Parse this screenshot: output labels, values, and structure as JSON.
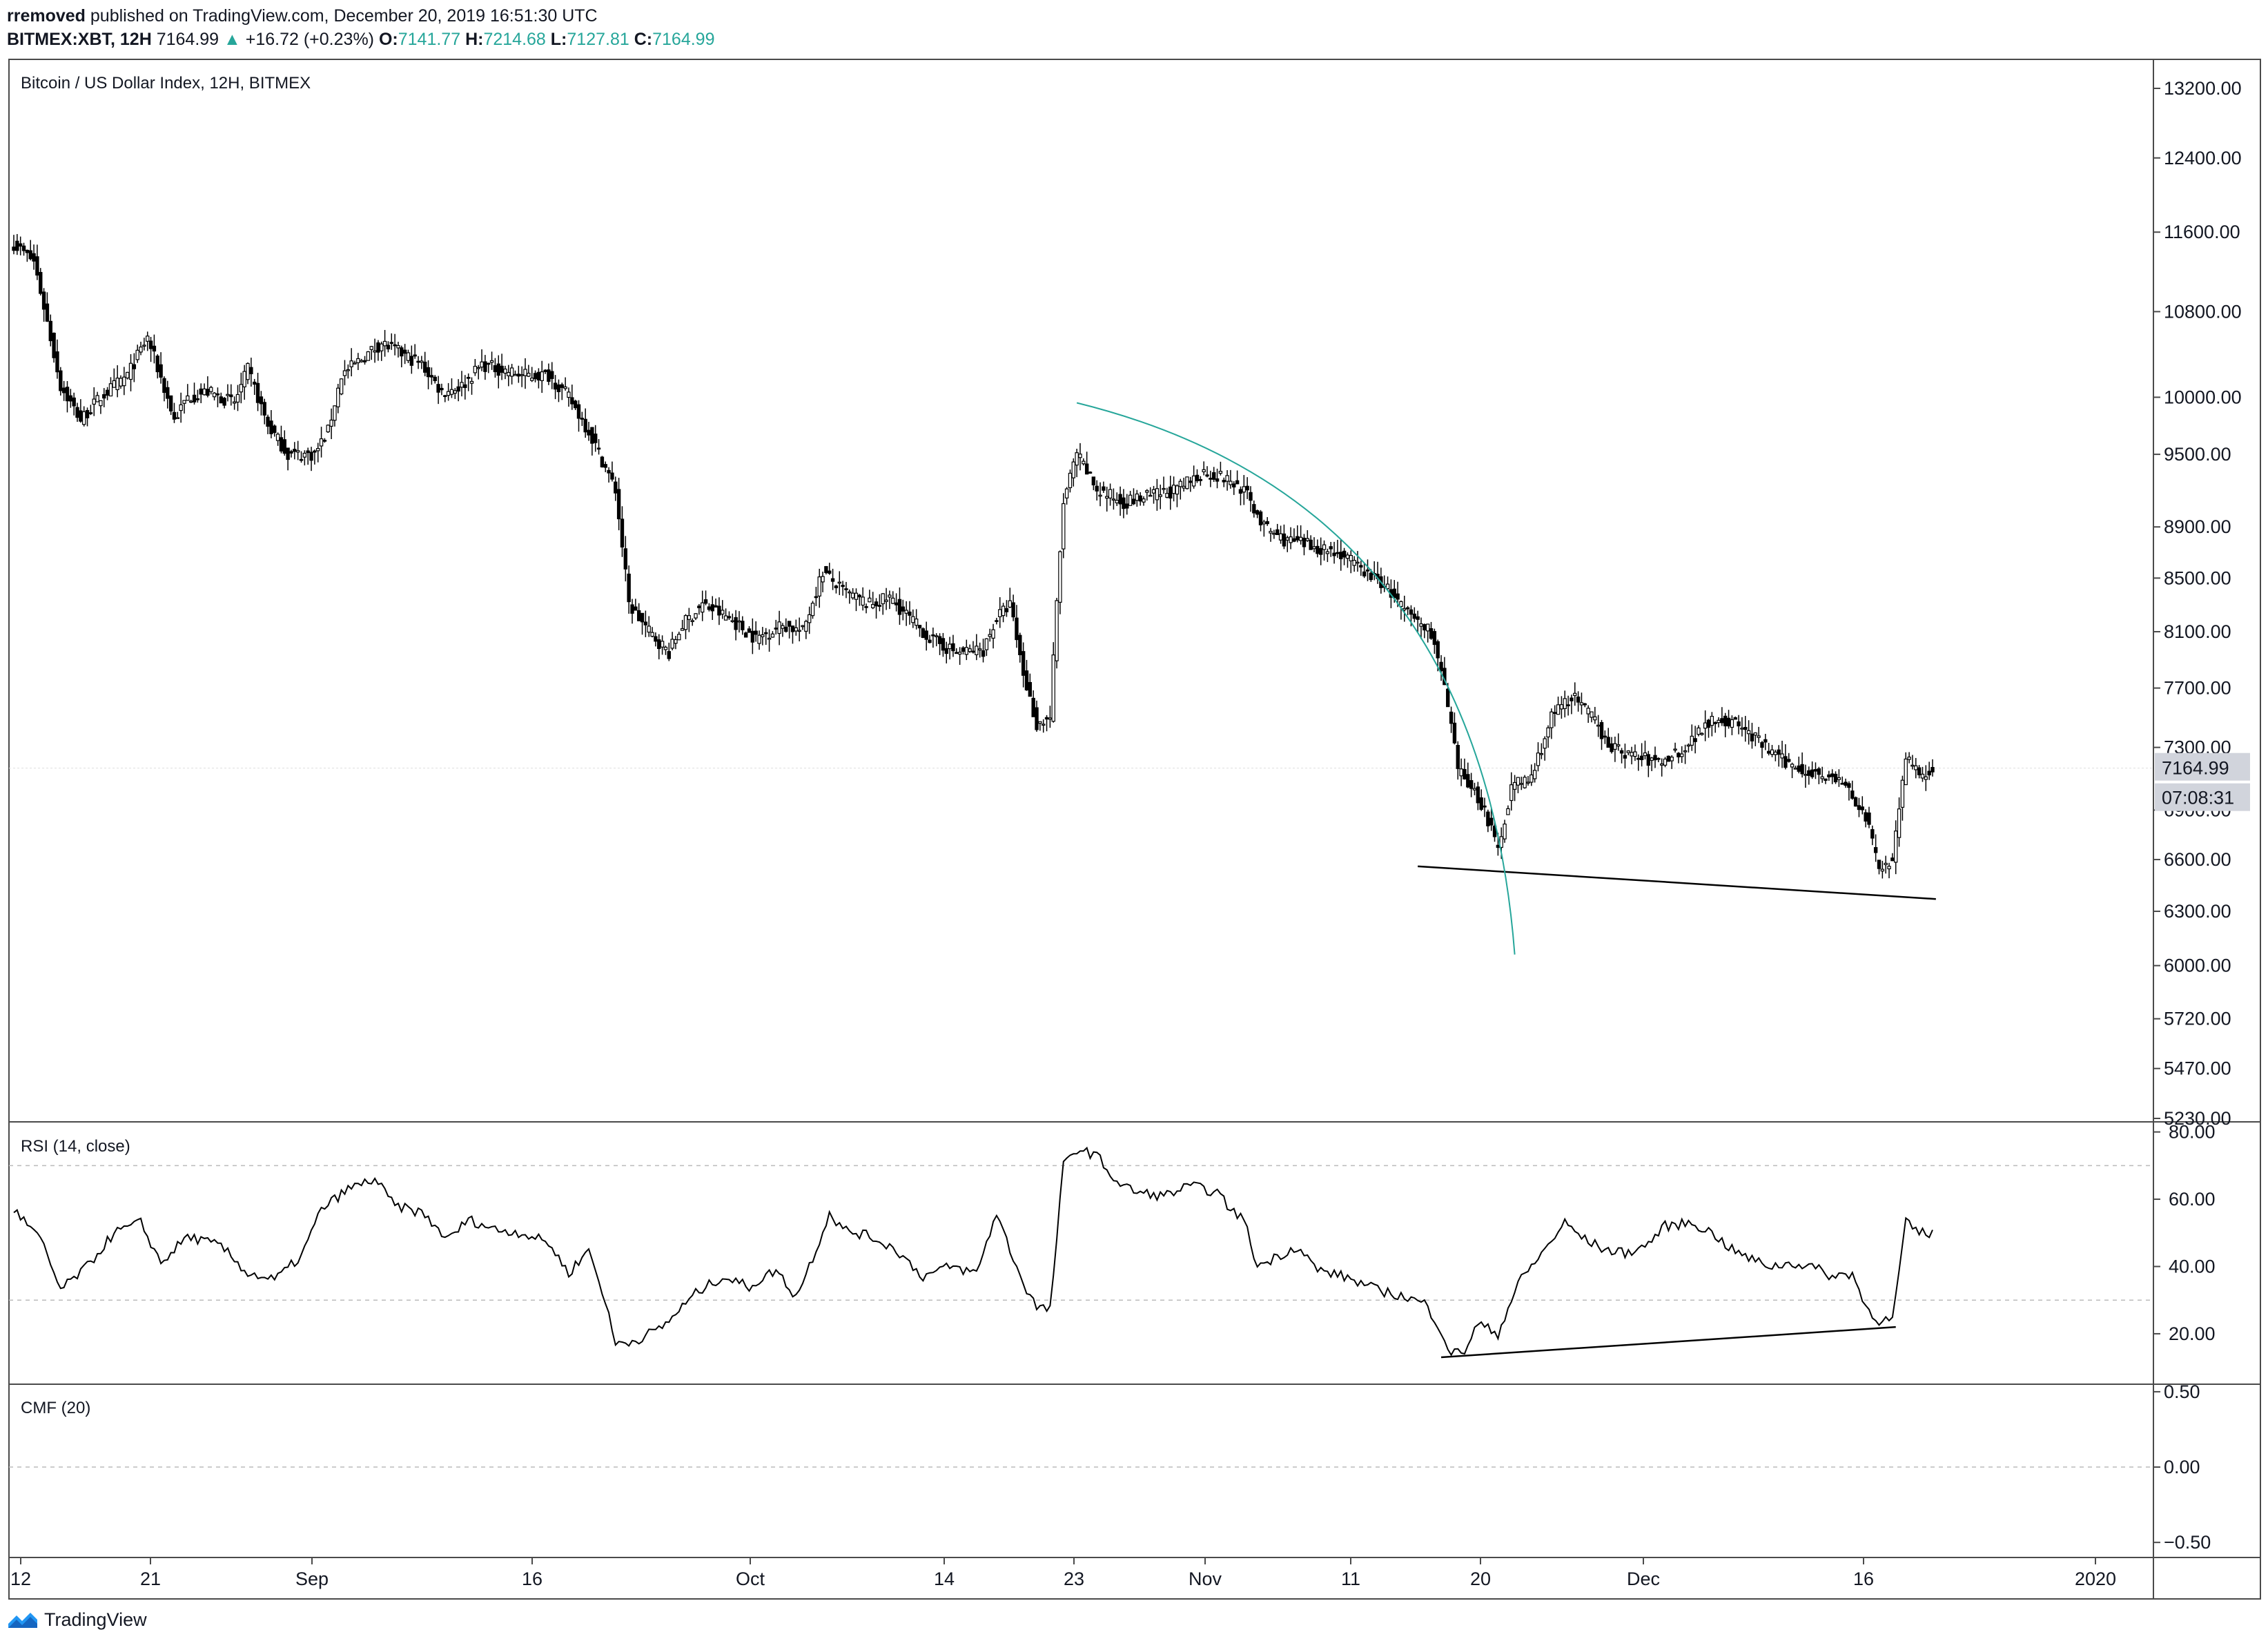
{
  "header": {
    "author": "rremoved",
    "published": "published on TradingView.com, December 20, 2019 16:51:30 UTC",
    "symbol": "BITMEX:XBT, 12H",
    "last": "7164.99",
    "change": "+16.72 (+0.23%)",
    "o_label": "O:",
    "o": "7141.77",
    "h_label": "H:",
    "h": "7214.68",
    "l_label": "L:",
    "l": "7127.81",
    "c_label": "C:",
    "c": "7164.99"
  },
  "footer": {
    "brand": "TradingView",
    "logo_icon": "tradingview-logo-icon"
  },
  "colors": {
    "candle": "#000000",
    "arc": "#26a69a",
    "grid_dash": "#cccccc",
    "label_bg": "#d1d4dc",
    "accent": "#26a69a"
  },
  "chart_data": [
    {
      "type": "candlestick",
      "title": "Bitcoin / US Dollar Index, 12H, BITMEX",
      "price_ticks": [
        "13200.00",
        "12400.00",
        "11600.00",
        "10800.00",
        "10000.00",
        "9500.00",
        "8900.00",
        "8500.00",
        "8100.00",
        "7700.00",
        "7300.00",
        "6900.00",
        "6600.00",
        "6300.00",
        "6000.00",
        "5720.00",
        "5470.00",
        "5230.00"
      ],
      "last_price_label": "7164.99",
      "countdown_label": "07:08:31",
      "x_ticks": [
        "12",
        "21",
        "Sep",
        "16",
        "Oct",
        "14",
        "23",
        "Nov",
        "11",
        "20",
        "Dec",
        "16",
        "2020"
      ],
      "ylim": [
        5230,
        13200
      ],
      "anchors": [
        [
          0,
          11480
        ],
        [
          6,
          11300
        ],
        [
          14,
          10100
        ],
        [
          20,
          9800
        ],
        [
          26,
          10000
        ],
        [
          34,
          10200
        ],
        [
          40,
          10550
        ],
        [
          48,
          9800
        ],
        [
          52,
          10000
        ],
        [
          58,
          10050
        ],
        [
          66,
          9950
        ],
        [
          70,
          10250
        ],
        [
          76,
          9750
        ],
        [
          82,
          9500
        ],
        [
          90,
          9500
        ],
        [
          94,
          9700
        ],
        [
          98,
          10200
        ],
        [
          104,
          10350
        ],
        [
          110,
          10500
        ],
        [
          116,
          10400
        ],
        [
          122,
          10300
        ],
        [
          128,
          10050
        ],
        [
          134,
          10100
        ],
        [
          140,
          10300
        ],
        [
          146,
          10250
        ],
        [
          152,
          10200
        ],
        [
          160,
          10200
        ],
        [
          166,
          10000
        ],
        [
          172,
          9700
        ],
        [
          180,
          9200
        ],
        [
          184,
          8300
        ],
        [
          190,
          8100
        ],
        [
          196,
          7950
        ],
        [
          200,
          8150
        ],
        [
          206,
          8300
        ],
        [
          214,
          8200
        ],
        [
          222,
          8050
        ],
        [
          230,
          8150
        ],
        [
          236,
          8100
        ],
        [
          242,
          8550
        ],
        [
          248,
          8400
        ],
        [
          256,
          8300
        ],
        [
          262,
          8350
        ],
        [
          268,
          8200
        ],
        [
          274,
          8050
        ],
        [
          282,
          7950
        ],
        [
          290,
          7970
        ],
        [
          294,
          8200
        ],
        [
          298,
          8300
        ],
        [
          302,
          7800
        ],
        [
          306,
          7450
        ],
        [
          310,
          7500
        ],
        [
          314,
          9100
        ],
        [
          318,
          9500
        ],
        [
          324,
          9200
        ],
        [
          332,
          9100
        ],
        [
          340,
          9150
        ],
        [
          348,
          9200
        ],
        [
          356,
          9350
        ],
        [
          362,
          9300
        ],
        [
          368,
          9200
        ],
        [
          374,
          8900
        ],
        [
          380,
          8800
        ],
        [
          388,
          8750
        ],
        [
          396,
          8700
        ],
        [
          404,
          8550
        ],
        [
          410,
          8450
        ],
        [
          416,
          8250
        ],
        [
          424,
          8100
        ],
        [
          428,
          7700
        ],
        [
          432,
          7150
        ],
        [
          436,
          7050
        ],
        [
          440,
          6900
        ],
        [
          444,
          6650
        ],
        [
          448,
          7050
        ],
        [
          454,
          7100
        ],
        [
          460,
          7500
        ],
        [
          466,
          7650
        ],
        [
          472,
          7500
        ],
        [
          478,
          7300
        ],
        [
          484,
          7250
        ],
        [
          492,
          7200
        ],
        [
          500,
          7300
        ],
        [
          508,
          7500
        ],
        [
          516,
          7450
        ],
        [
          524,
          7300
        ],
        [
          530,
          7200
        ],
        [
          536,
          7150
        ],
        [
          542,
          7120
        ],
        [
          548,
          7050
        ],
        [
          554,
          6850
        ],
        [
          558,
          6550
        ],
        [
          562,
          6600
        ],
        [
          566,
          7250
        ],
        [
          570,
          7100
        ],
        [
          574,
          7165
        ]
      ],
      "candles": 575,
      "note": "anchors are [candle index, approximate close price]; individual candles interpolated",
      "lines": [
        {
          "name": "support-line",
          "from": [
            420,
            6560
          ],
          "to": [
            575,
            6370
          ]
        }
      ],
      "arc": {
        "name": "parabolic-arc",
        "from": [
          318,
          9950
        ],
        "to": [
          449,
          6060
        ]
      }
    },
    {
      "type": "line",
      "title": "RSI (14, close)",
      "ticks": [
        "80.00",
        "60.00",
        "40.00",
        "20.00"
      ],
      "ylim": [
        5,
        83
      ],
      "bands": [
        70,
        30
      ],
      "anchors": [
        [
          0,
          57
        ],
        [
          8,
          48
        ],
        [
          14,
          33
        ],
        [
          22,
          40
        ],
        [
          30,
          50
        ],
        [
          38,
          53
        ],
        [
          44,
          41
        ],
        [
          52,
          49
        ],
        [
          62,
          46
        ],
        [
          70,
          38
        ],
        [
          78,
          36
        ],
        [
          86,
          43
        ],
        [
          92,
          57
        ],
        [
          100,
          63
        ],
        [
          108,
          66
        ],
        [
          114,
          58
        ],
        [
          122,
          56
        ],
        [
          130,
          48
        ],
        [
          136,
          54
        ],
        [
          144,
          51
        ],
        [
          152,
          50
        ],
        [
          160,
          47
        ],
        [
          166,
          38
        ],
        [
          172,
          45
        ],
        [
          176,
          33
        ],
        [
          180,
          17
        ],
        [
          186,
          18
        ],
        [
          194,
          22
        ],
        [
          204,
          32
        ],
        [
          212,
          37
        ],
        [
          220,
          34
        ],
        [
          228,
          39
        ],
        [
          234,
          31
        ],
        [
          240,
          45
        ],
        [
          244,
          56
        ],
        [
          248,
          51
        ],
        [
          256,
          49
        ],
        [
          264,
          45
        ],
        [
          272,
          37
        ],
        [
          280,
          40
        ],
        [
          288,
          38
        ],
        [
          294,
          56
        ],
        [
          298,
          45
        ],
        [
          302,
          35
        ],
        [
          306,
          28
        ],
        [
          310,
          27
        ],
        [
          314,
          70
        ],
        [
          318,
          75
        ],
        [
          324,
          73
        ],
        [
          330,
          65
        ],
        [
          336,
          62
        ],
        [
          344,
          61
        ],
        [
          352,
          64
        ],
        [
          360,
          62
        ],
        [
          364,
          57
        ],
        [
          368,
          54
        ],
        [
          372,
          40
        ],
        [
          378,
          43
        ],
        [
          384,
          46
        ],
        [
          390,
          39
        ],
        [
          398,
          37
        ],
        [
          408,
          33
        ],
        [
          416,
          31
        ],
        [
          422,
          29
        ],
        [
          426,
          23
        ],
        [
          430,
          14
        ],
        [
          434,
          15
        ],
        [
          438,
          23
        ],
        [
          444,
          20
        ],
        [
          450,
          35
        ],
        [
          458,
          45
        ],
        [
          464,
          53
        ],
        [
          470,
          48
        ],
        [
          476,
          45
        ],
        [
          482,
          44
        ],
        [
          488,
          46
        ],
        [
          494,
          52
        ],
        [
          502,
          53
        ],
        [
          508,
          50
        ],
        [
          514,
          45
        ],
        [
          520,
          42
        ],
        [
          526,
          40
        ],
        [
          532,
          41
        ],
        [
          538,
          40
        ],
        [
          544,
          37
        ],
        [
          550,
          38
        ],
        [
          554,
          28
        ],
        [
          558,
          24
        ],
        [
          562,
          24
        ],
        [
          566,
          53
        ],
        [
          570,
          50
        ],
        [
          574,
          50
        ]
      ],
      "lines": [
        {
          "name": "rsi-support-line",
          "from": [
            427,
            13
          ],
          "to": [
            563,
            22
          ]
        }
      ]
    },
    {
      "type": "line",
      "title": "CMF (20)",
      "ticks": [
        "0.50",
        "0.00",
        "−0.50"
      ],
      "ylim": [
        -0.6,
        0.55
      ],
      "bands": [
        0
      ]
    }
  ]
}
